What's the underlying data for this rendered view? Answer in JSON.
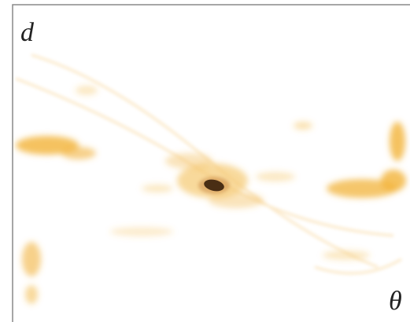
{
  "labels": {
    "vertical": "d",
    "horizontal": "θ"
  }
}
